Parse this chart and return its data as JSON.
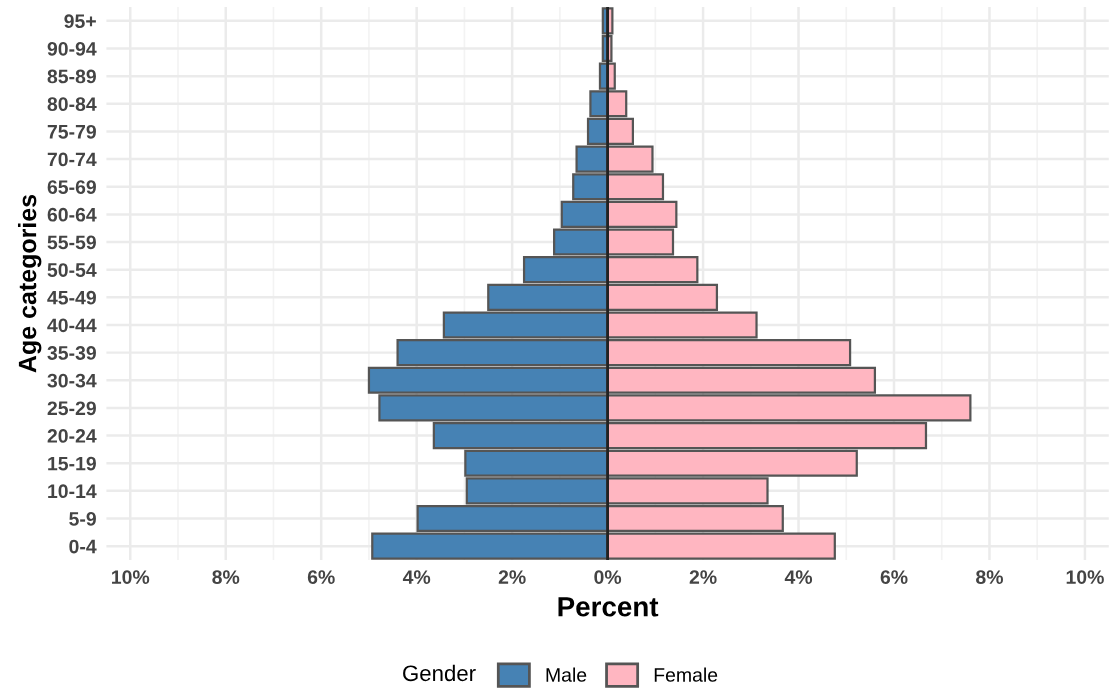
{
  "chart_data": {
    "type": "bar",
    "orientation": "horizontal",
    "stacked": true,
    "xlabel": "Percent",
    "ylabel": "Age categories",
    "legend_title": "Gender",
    "categories": [
      "95+",
      "90-94",
      "85-89",
      "80-84",
      "75-79",
      "70-74",
      "65-69",
      "60-64",
      "55-59",
      "50-54",
      "45-49",
      "40-44",
      "35-39",
      "30-34",
      "25-29",
      "20-24",
      "15-19",
      "10-14",
      "5-9",
      "0-4"
    ],
    "series": [
      {
        "name": "Male",
        "color": "#4682b4",
        "values": [
          -0.1,
          -0.1,
          -0.16,
          -0.36,
          -0.41,
          -0.65,
          -0.72,
          -0.96,
          -1.12,
          -1.75,
          -2.5,
          -3.43,
          -4.4,
          -5.0,
          -4.78,
          -3.64,
          -2.98,
          -2.95,
          -3.98,
          -4.93
        ]
      },
      {
        "name": "Female",
        "color": "#ffb6c1",
        "values": [
          0.1,
          0.08,
          0.15,
          0.39,
          0.53,
          0.94,
          1.16,
          1.44,
          1.37,
          1.88,
          2.29,
          3.12,
          5.08,
          5.6,
          7.6,
          6.67,
          5.22,
          3.35,
          3.67,
          4.76
        ]
      }
    ],
    "xlim": [
      -10.5,
      10.5
    ],
    "xticks": [
      {
        "value": -10,
        "label": "10%"
      },
      {
        "value": -8,
        "label": "8%"
      },
      {
        "value": -6,
        "label": "6%"
      },
      {
        "value": -4,
        "label": "4%"
      },
      {
        "value": -2,
        "label": "2%"
      },
      {
        "value": 0,
        "label": "0%"
      },
      {
        "value": 2,
        "label": "2%"
      },
      {
        "value": 4,
        "label": "4%"
      },
      {
        "value": 6,
        "label": "6%"
      },
      {
        "value": 8,
        "label": "8%"
      },
      {
        "value": 10,
        "label": "10%"
      }
    ],
    "grid": true,
    "legend": "bottom"
  }
}
